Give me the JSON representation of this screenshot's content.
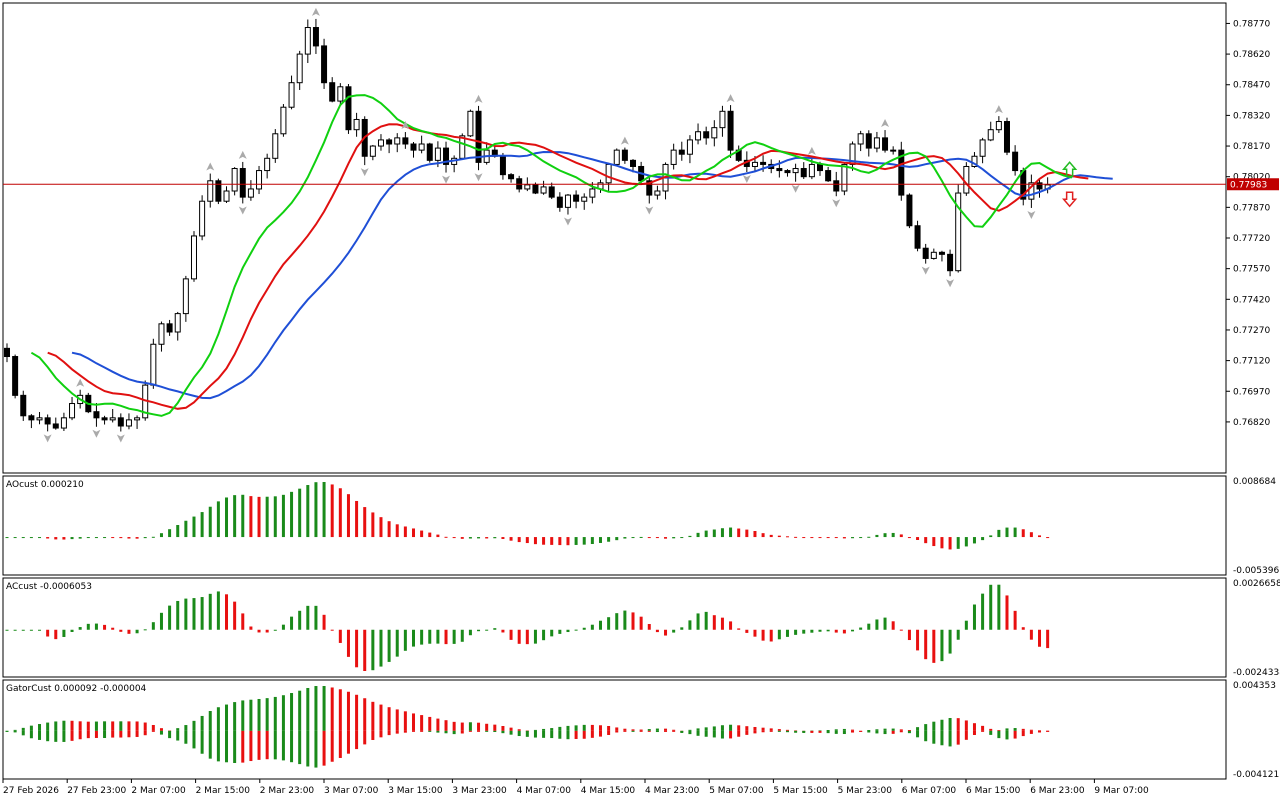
{
  "chart_data": [
    {
      "panel": "main",
      "type": "candlestick",
      "ylim": [
        0.7657,
        0.7887
      ],
      "y_ticks": [
        "0.78770",
        "0.78620",
        "0.78470",
        "0.78320",
        "0.78170",
        "0.78020",
        "0.77870",
        "0.77720",
        "0.77570",
        "0.77420",
        "0.77270",
        "0.77120",
        "0.76970",
        "0.76820"
      ],
      "y_tick_values": [
        0.7877,
        0.7862,
        0.7847,
        0.7832,
        0.7817,
        0.7802,
        0.7787,
        0.7772,
        0.7757,
        0.7742,
        0.7727,
        0.7712,
        0.7697,
        0.7682
      ],
      "current_price": 0.77983,
      "current_price_label": "0.77983",
      "closes": [
        0.7714,
        0.7695,
        0.7685,
        0.7683,
        0.7684,
        0.7681,
        0.7679,
        0.7684,
        0.7691,
        0.7695,
        0.7687,
        0.7684,
        0.7683,
        0.7684,
        0.768,
        0.7683,
        0.7684,
        0.77,
        0.772,
        0.773,
        0.7726,
        0.7735,
        0.7752,
        0.7773,
        0.779,
        0.78,
        0.779,
        0.7795,
        0.7806,
        0.7792,
        0.7796,
        0.7805,
        0.7811,
        0.7823,
        0.7836,
        0.7848,
        0.7862,
        0.7875,
        0.7866,
        0.7848,
        0.7839,
        0.7846,
        0.7825,
        0.783,
        0.7812,
        0.7817,
        0.782,
        0.7818,
        0.7821,
        0.7818,
        0.7815,
        0.7818,
        0.781,
        0.7816,
        0.7808,
        0.7811,
        0.7822,
        0.7834,
        0.7809,
        0.7815,
        0.7812,
        0.7803,
        0.7801,
        0.7796,
        0.7798,
        0.7794,
        0.7797,
        0.7792,
        0.7787,
        0.7793,
        0.779,
        0.7792,
        0.7796,
        0.7799,
        0.7808,
        0.7815,
        0.781,
        0.7807,
        0.78,
        0.7793,
        0.7795,
        0.7808,
        0.7815,
        0.7813,
        0.782,
        0.7824,
        0.7821,
        0.7826,
        0.7834,
        0.7815,
        0.781,
        0.7807,
        0.7809,
        0.7808,
        0.7806,
        0.7805,
        0.7804,
        0.7806,
        0.7802,
        0.7808,
        0.7805,
        0.78,
        0.7795,
        0.7808,
        0.7818,
        0.7823,
        0.7816,
        0.7821,
        0.7815,
        0.7815,
        0.7793,
        0.7778,
        0.7767,
        0.7762,
        0.7765,
        0.7764,
        0.7756,
        0.7794,
        0.7807,
        0.7812,
        0.782,
        0.7825,
        0.7829,
        0.7814,
        0.7805,
        0.7791,
        0.7799,
        0.7796,
        0.7798
      ],
      "x_labels": [
        "27 Feb 2026",
        "27 Feb 23:00",
        "2 Mar 07:00",
        "2 Mar 15:00",
        "2 Mar 23:00",
        "3 Mar 07:00",
        "3 Mar 15:00",
        "3 Mar 23:00",
        "4 Mar 07:00",
        "4 Mar 15:00",
        "4 Mar 23:00",
        "5 Mar 07:00",
        "5 Mar 15:00",
        "5 Mar 23:00",
        "6 Mar 07:00",
        "6 Mar 15:00",
        "6 Mar 23:00",
        "9 Mar 07:00"
      ],
      "series": [
        {
          "role": "jaw",
          "color": "#1f4fd6"
        },
        {
          "role": "teeth",
          "color": "#e01010"
        },
        {
          "role": "lips",
          "color": "#10d010"
        }
      ],
      "fractal_marker": "gray arrowheads above/below bar extremes",
      "signal_arrows": [
        {
          "direction": "up",
          "color": "#22bb22"
        },
        {
          "direction": "down",
          "color": "#e02020"
        }
      ]
    },
    {
      "panel": "ao",
      "type": "histogram",
      "label": "AOcust 0.000210",
      "ylim": [
        -0.005396,
        0.008684
      ],
      "y_ticks": [
        "0.008684",
        "-0.005396"
      ],
      "colors": {
        "up": "#1a8a1a",
        "down": "#e81010"
      }
    },
    {
      "panel": "ac",
      "type": "histogram",
      "label": "ACcust -0.0006053",
      "ylim": [
        -0.0024338,
        0.0026658
      ],
      "y_ticks": [
        "0.0026658",
        "-0.0024338"
      ],
      "colors": {
        "up": "#1a8a1a",
        "down": "#e81010"
      }
    },
    {
      "panel": "gator",
      "type": "histogram",
      "label": "GatorCust 0.000092 -0.000004",
      "ylim": [
        -0.004121,
        0.004353
      ],
      "y_ticks": [
        "0.004353",
        "-0.004121"
      ],
      "colors": {
        "up": "#1a8a1a",
        "down": "#e81010"
      }
    }
  ]
}
